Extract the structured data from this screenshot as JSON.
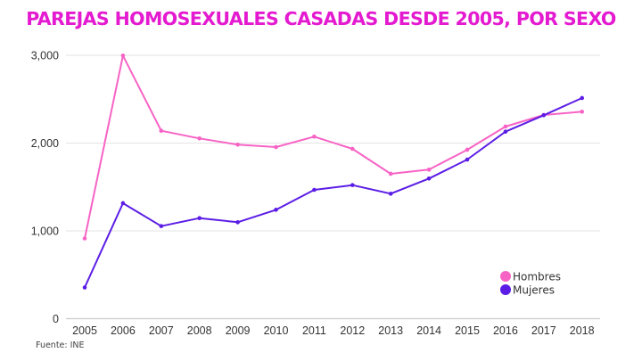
{
  "chart_data": {
    "type": "line",
    "title": "PAREJAS HOMOSEXUALES CASADAS DESDE 2005, POR SEXO",
    "xlabel": "",
    "ylabel": "",
    "x": [
      "2005",
      "2006",
      "2007",
      "2008",
      "2009",
      "2010",
      "2011",
      "2012",
      "2013",
      "2014",
      "2015",
      "2016",
      "2017",
      "2018"
    ],
    "ylim": [
      0,
      3000
    ],
    "yticks": [
      0,
      1000,
      2000,
      3000
    ],
    "ytick_labels": [
      "0",
      "1,000",
      "2,000",
      "3,000"
    ],
    "grid": true,
    "legend_position": "bottom-right",
    "series": [
      {
        "name": "Hombres",
        "color": "#f763c5",
        "values": [
          914,
          2996,
          2140,
          2053,
          1982,
          1954,
          2073,
          1934,
          1650,
          1697,
          1924,
          2188,
          2320,
          2357
        ]
      },
      {
        "name": "Mujeres",
        "color": "#5b1de6",
        "values": [
          355,
          1315,
          1054,
          1145,
          1098,
          1240,
          1467,
          1521,
          1423,
          1596,
          1812,
          2130,
          2317,
          2513
        ]
      }
    ],
    "source": "Fuente: INE"
  }
}
